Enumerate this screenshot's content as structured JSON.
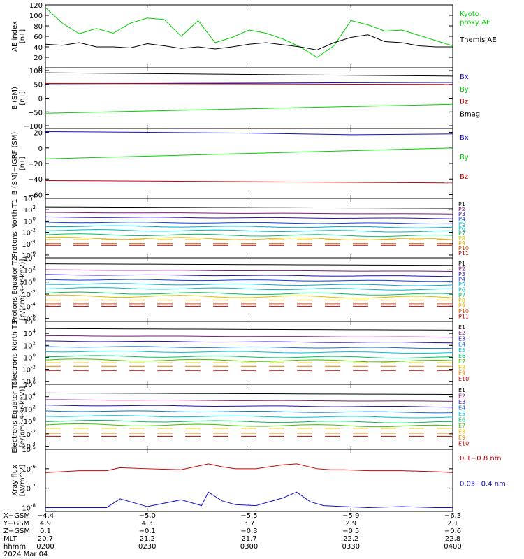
{
  "colors": {
    "black": "#000000",
    "green": "#00d000",
    "blue": "#1010c8",
    "red": "#c80000",
    "P": [
      "#000000",
      "#7a1a7a",
      "#2a10b0",
      "#1040e0",
      "#00a8d8",
      "#00b8b8",
      "#00c060",
      "#d8c000",
      "#e8a000",
      "#d05000",
      "#c00000"
    ],
    "E": [
      "#000000",
      "#7a1a7a",
      "#2a10b0",
      "#1070e0",
      "#00c0d0",
      "#00c060",
      "#40c000",
      "#e0c000",
      "#e08000",
      "#c80000"
    ]
  },
  "chart_data": [
    {
      "type": "line",
      "ylabel": "AE index [nT]",
      "ylim": [
        0,
        120
      ],
      "yticks": [
        "0",
        "20",
        "40",
        "60",
        "80",
        "100",
        "120"
      ],
      "series": [
        {
          "name": "Kyoto proxy AE",
          "color": "#00d000",
          "x": [
            0,
            5,
            10,
            15,
            20,
            25,
            30,
            35,
            40,
            45,
            50,
            55,
            60,
            65,
            70,
            75,
            80,
            85,
            90,
            95,
            100,
            105,
            110,
            115,
            120
          ],
          "values": [
            115,
            85,
            65,
            75,
            66,
            85,
            95,
            92,
            60,
            90,
            48,
            58,
            72,
            66,
            55,
            40,
            20,
            42,
            90,
            82,
            70,
            72,
            62,
            52,
            42
          ]
        },
        {
          "name": "Themis AE",
          "color": "#000000",
          "x": [
            0,
            5,
            10,
            15,
            20,
            25,
            30,
            35,
            40,
            45,
            50,
            55,
            60,
            65,
            70,
            75,
            80,
            85,
            90,
            95,
            100,
            105,
            110,
            115,
            120
          ],
          "values": [
            45,
            43,
            48,
            40,
            40,
            38,
            46,
            42,
            37,
            40,
            36,
            40,
            45,
            48,
            44,
            40,
            34,
            48,
            58,
            63,
            50,
            48,
            42,
            40,
            40
          ]
        }
      ]
    },
    {
      "type": "line",
      "ylabel": "B (SM) [nT]",
      "ylim": [
        -110,
        110
      ],
      "yticks": [
        "−100",
        "−50",
        "0",
        "50",
        "100"
      ],
      "series": [
        {
          "name": "Bx",
          "color": "#1010c8",
          "x": [
            0,
            120
          ],
          "values": [
            52,
            57
          ]
        },
        {
          "name": "By",
          "color": "#00d000",
          "x": [
            0,
            120
          ],
          "values": [
            -55,
            -22
          ]
        },
        {
          "name": "Bz",
          "color": "#c80000",
          "x": [
            0,
            120
          ],
          "values": [
            53,
            50
          ]
        },
        {
          "name": "Bmag",
          "color": "#000000",
          "x": [
            0,
            120
          ],
          "values": [
            92,
            80
          ]
        }
      ]
    },
    {
      "type": "line",
      "ylabel": "B (SM)−IGRF (SM) [nT]",
      "ylim": [
        -65,
        25
      ],
      "yticks": [
        "−60",
        "−40",
        "−20",
        "0",
        "20"
      ],
      "series": [
        {
          "name": "Bx",
          "color": "#1010c8",
          "x": [
            0,
            30,
            60,
            90,
            120
          ],
          "values": [
            21,
            20,
            19,
            17,
            18
          ]
        },
        {
          "name": "By",
          "color": "#00d000",
          "x": [
            0,
            120
          ],
          "values": [
            -14,
            0
          ]
        },
        {
          "name": "Bz",
          "color": "#c80000",
          "x": [
            0,
            120
          ],
          "values": [
            -42,
            -45
          ]
        }
      ]
    },
    {
      "type": "line",
      "ylabel": "Protons North T1",
      "log": true,
      "ylim": [
        -6.5,
        4
      ],
      "yticks": [
        "10",
        "10",
        "10",
        "10",
        "10",
        "10"
      ],
      "ytick_exps": [
        "4",
        "2",
        "0",
        "-2",
        "-4",
        "-6"
      ],
      "legend": [
        "P1",
        "P2",
        "P3",
        "P4",
        "P5",
        "P6",
        "P7",
        "P8",
        "P9",
        "P10",
        "P11"
      ],
      "series_log10": [
        2.5,
        1.5,
        0.7,
        -0.2,
        -0.9,
        -1.6,
        -2.4,
        -3.0,
        -3.3,
        -4.0,
        -4.3
      ]
    },
    {
      "type": "line",
      "ylabel": "Protons Equator T2 [p/(cm²-s-sr-keV)]",
      "log": true,
      "ylim": [
        -6.5,
        4
      ],
      "yticks": [
        "10",
        "10",
        "10",
        "10",
        "10",
        "10"
      ],
      "ytick_exps": [
        "4",
        "2",
        "0",
        "-2",
        "-4",
        "-6"
      ],
      "legend": [
        "P1",
        "P2",
        "P3",
        "P4",
        "P5",
        "P6",
        "P7",
        "P8",
        "P9",
        "P10",
        "P11"
      ],
      "series_log10": [
        3.0,
        2.0,
        1.2,
        0.4,
        -0.3,
        -1.0,
        -1.8,
        -2.3,
        -3.0,
        -3.6,
        -4.0
      ]
    },
    {
      "type": "line",
      "ylabel": "Electrons North T3",
      "log": true,
      "ylim": [
        -4.5,
        6
      ],
      "yticks": [
        "10",
        "10",
        "10",
        "10",
        "10",
        "10"
      ],
      "ytick_exps": [
        "6",
        "4",
        "2",
        "0",
        "-2",
        "-4"
      ],
      "legend": [
        "E1",
        "E2",
        "E3",
        "E4",
        "E5",
        "E6",
        "E7",
        "E8",
        "E9",
        "E10"
      ],
      "series_log10": [
        4.8,
        3.6,
        2.7,
        1.8,
        1.0,
        0.2,
        -0.4,
        -0.9,
        -1.5,
        -2.2
      ]
    },
    {
      "type": "line",
      "ylabel": "Electrons Equator T4 [e/(cm²-s-sr-keV)]",
      "log": true,
      "ylim": [
        -4.5,
        6
      ],
      "yticks": [
        "10",
        "10",
        "10",
        "10",
        "10",
        "10"
      ],
      "ytick_exps": [
        "6",
        "4",
        "2",
        "0",
        "-2",
        "-4"
      ],
      "legend": [
        "E1",
        "E2",
        "E3",
        "E4",
        "E5",
        "E6",
        "E7",
        "E8",
        "E9",
        "E10"
      ],
      "series_log10": [
        4.6,
        3.5,
        2.6,
        1.7,
        0.9,
        0.1,
        -0.5,
        -1.1,
        -1.9,
        -2.4
      ]
    },
    {
      "type": "line",
      "ylabel": "Xray flux [W/m^2]",
      "log": true,
      "ylim": [
        -8.2,
        -5
      ],
      "yticks": [
        "10",
        "10",
        "10",
        "10"
      ],
      "ytick_exps": [
        "-5",
        "-6",
        "-7",
        "-8"
      ],
      "series": [
        {
          "name": "0.1−0.8 nm",
          "color": "#c80000",
          "x": [
            0,
            10,
            18,
            22,
            30,
            40,
            48,
            52,
            56,
            62,
            70,
            74,
            80,
            84,
            88,
            95,
            105,
            115,
            120
          ],
          "log10": [
            -6.2,
            -6.1,
            -6.1,
            -5.95,
            -6.0,
            -6.05,
            -5.75,
            -5.9,
            -6.0,
            -6.0,
            -5.8,
            -5.75,
            -6.0,
            -6.05,
            -6.05,
            -6.1,
            -6.1,
            -6.15,
            -6.2
          ]
        },
        {
          "name": "0.05−0.4 nm",
          "color": "#1010c8",
          "x": [
            0,
            10,
            18,
            22,
            30,
            40,
            46,
            48,
            52,
            56,
            62,
            70,
            74,
            78,
            82,
            88,
            95,
            105,
            115,
            120
          ],
          "log10": [
            -8.0,
            -8.0,
            -8.0,
            -7.55,
            -7.95,
            -7.6,
            -7.9,
            -7.2,
            -7.65,
            -7.85,
            -7.9,
            -7.5,
            -7.2,
            -7.7,
            -7.9,
            -7.95,
            -8.0,
            -7.95,
            -8.0,
            -8.0
          ]
        }
      ]
    }
  ],
  "orbit": {
    "rows": [
      {
        "label": "X−GSM",
        "values": [
          "−4.4",
          "−5.0",
          "−5.5",
          "−5.9",
          "−6.3"
        ]
      },
      {
        "label": "Y−GSM",
        "values": [
          "4.9",
          "4.3",
          "3.7",
          "2.9",
          "2.1"
        ]
      },
      {
        "label": "Z−GSM",
        "values": [
          "0.1",
          "−0.1",
          "−0.3",
          "−0.5",
          "−0.6"
        ]
      },
      {
        "label": "MLT",
        "values": [
          "20.7",
          "21.2",
          "21.7",
          "22.2",
          "22.8"
        ]
      },
      {
        "label": "hhmm",
        "values": [
          "0200",
          "0230",
          "0300",
          "0330",
          "0400"
        ]
      }
    ],
    "date": "2024 Mar 04"
  }
}
